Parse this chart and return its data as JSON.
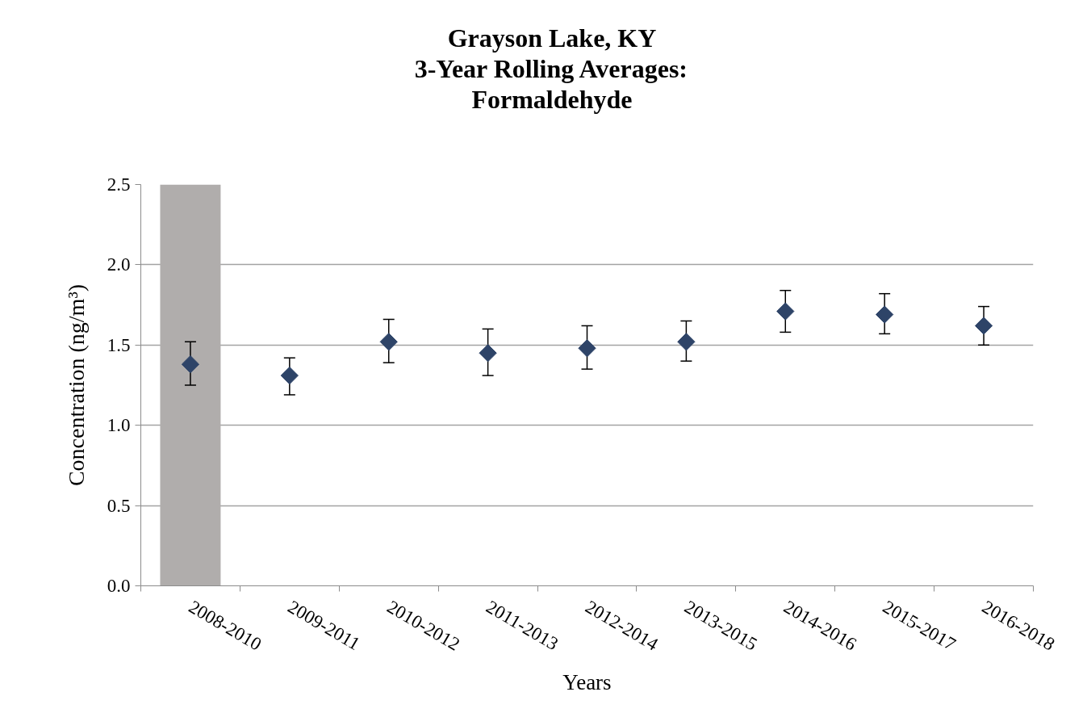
{
  "chart_data": {
    "type": "scatter",
    "title": "Grayson Lake, KY\n3-Year Rolling Averages:\nFormaldehyde",
    "xlabel": "Years",
    "ylabel": "Concentration (ng/m³)",
    "categories": [
      "2008-2010",
      "2009-2011",
      "2010-2012",
      "2011-2013",
      "2012-2014",
      "2013-2015",
      "2014-2016",
      "2015-2017",
      "2016-2018"
    ],
    "ylim": [
      0,
      2.5
    ],
    "yticks": [
      {
        "value": 0,
        "label": "0.0"
      },
      0.5,
      {
        "value": 1,
        "label": "1.0"
      },
      1.5,
      {
        "value": 2,
        "label": "2.0"
      },
      2.5
    ],
    "grid": "y",
    "marker": "diamond",
    "series": [
      {
        "type": "bar",
        "color": "#b0adac",
        "values": [
          2.5,
          null,
          null,
          null,
          null,
          null,
          null,
          null,
          null
        ]
      },
      {
        "color": "#2e4468",
        "values": [
          1.38,
          1.31,
          1.52,
          1.45,
          1.48,
          1.52,
          1.71,
          1.69,
          1.62
        ],
        "errors": [
          [
            1.25,
            1.52
          ],
          [
            1.19,
            1.42
          ],
          [
            1.39,
            1.66
          ],
          [
            1.31,
            1.6
          ],
          [
            1.35,
            1.62
          ],
          [
            1.4,
            1.65
          ],
          [
            1.58,
            1.84
          ],
          [
            1.57,
            1.82
          ],
          [
            1.5,
            1.74
          ]
        ]
      }
    ]
  }
}
